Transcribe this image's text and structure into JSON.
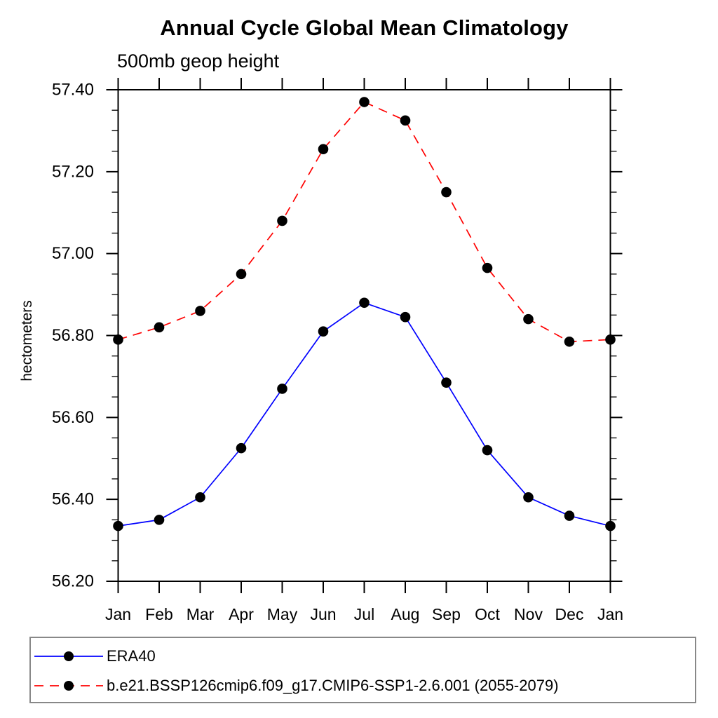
{
  "chart_data": {
    "type": "line",
    "title": "Annual Cycle Global Mean Climatology",
    "subtitle": "500mb geop height",
    "ylabel": "hectometers",
    "xlabel": "",
    "categories": [
      "Jan",
      "Feb",
      "Mar",
      "Apr",
      "May",
      "Jun",
      "Jul",
      "Aug",
      "Sep",
      "Oct",
      "Nov",
      "Dec",
      "Jan"
    ],
    "ylim": [
      56.2,
      57.4
    ],
    "ytick_major_interval": 0.2,
    "ytick_minor_interval": 0.05,
    "ytick_labels": [
      "56.20",
      "56.40",
      "56.60",
      "56.80",
      "57.00",
      "57.20",
      "57.40"
    ],
    "grid": false,
    "legend_position": "bottom",
    "axis_color": "#000000",
    "marker_color": "#000000",
    "series": [
      {
        "name": "ERA40",
        "color": "#0000ff",
        "line_style": "solid",
        "marker": "circle",
        "values": [
          56.335,
          56.35,
          56.405,
          56.525,
          56.67,
          56.81,
          56.88,
          56.845,
          56.685,
          56.52,
          56.405,
          56.36,
          56.335
        ]
      },
      {
        "name": "b.e21.BSSP126cmip6.f09_g17.CMIP6-SSP1-2.6.001 (2055-2079)",
        "color": "#ff0000",
        "line_style": "dashed",
        "marker": "circle",
        "values": [
          56.79,
          56.82,
          56.86,
          56.95,
          57.08,
          57.255,
          57.37,
          57.325,
          57.15,
          56.965,
          56.84,
          56.785,
          56.79
        ]
      }
    ]
  }
}
